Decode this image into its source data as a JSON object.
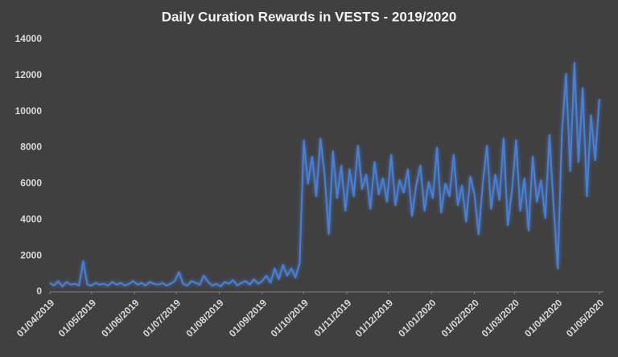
{
  "chart_data": {
    "type": "line",
    "title": "Daily Curation Rewards in VESTS - 2019/2020",
    "x": [
      "01/04/2019",
      "04/04/2019",
      "07/04/2019",
      "10/04/2019",
      "13/04/2019",
      "16/04/2019",
      "19/04/2019",
      "22/04/2019",
      "25/04/2019",
      "28/04/2019",
      "01/05/2019",
      "04/05/2019",
      "07/05/2019",
      "10/05/2019",
      "13/05/2019",
      "16/05/2019",
      "19/05/2019",
      "22/05/2019",
      "25/05/2019",
      "28/05/2019",
      "31/05/2019",
      "03/06/2019",
      "06/06/2019",
      "09/06/2019",
      "12/06/2019",
      "15/06/2019",
      "18/06/2019",
      "21/06/2019",
      "24/06/2019",
      "27/06/2019",
      "30/06/2019",
      "03/07/2019",
      "06/07/2019",
      "09/07/2019",
      "12/07/2019",
      "15/07/2019",
      "18/07/2019",
      "21/07/2019",
      "24/07/2019",
      "27/07/2019",
      "30/07/2019",
      "02/08/2019",
      "05/08/2019",
      "08/08/2019",
      "11/08/2019",
      "14/08/2019",
      "17/08/2019",
      "20/08/2019",
      "23/08/2019",
      "26/08/2019",
      "29/08/2019",
      "01/09/2019",
      "04/09/2019",
      "07/09/2019",
      "10/09/2019",
      "13/09/2019",
      "16/09/2019",
      "19/09/2019",
      "22/09/2019",
      "25/09/2019",
      "28/09/2019",
      "01/10/2019",
      "04/10/2019",
      "07/10/2019",
      "10/10/2019",
      "13/10/2019",
      "16/10/2019",
      "19/10/2019",
      "22/10/2019",
      "25/10/2019",
      "28/10/2019",
      "31/10/2019",
      "03/11/2019",
      "06/11/2019",
      "09/11/2019",
      "12/11/2019",
      "15/11/2019",
      "18/11/2019",
      "21/11/2019",
      "24/11/2019",
      "27/11/2019",
      "30/11/2019",
      "03/12/2019",
      "06/12/2019",
      "09/12/2019",
      "12/12/2019",
      "15/12/2019",
      "18/12/2019",
      "21/12/2019",
      "24/12/2019",
      "27/12/2019",
      "30/12/2019",
      "02/01/2020",
      "05/01/2020",
      "08/01/2020",
      "11/01/2020",
      "14/01/2020",
      "17/01/2020",
      "20/01/2020",
      "23/01/2020",
      "26/01/2020",
      "29/01/2020",
      "01/02/2020",
      "04/02/2020",
      "07/02/2020",
      "10/02/2020",
      "13/02/2020",
      "16/02/2020",
      "19/02/2020",
      "22/02/2020",
      "25/02/2020",
      "28/02/2020",
      "02/03/2020",
      "05/03/2020",
      "08/03/2020",
      "11/03/2020",
      "14/03/2020",
      "17/03/2020",
      "20/03/2020",
      "23/03/2020",
      "26/03/2020",
      "29/03/2020",
      "01/04/2020",
      "04/04/2020",
      "07/04/2020",
      "10/04/2020",
      "13/04/2020",
      "16/04/2020",
      "19/04/2020",
      "22/04/2020",
      "25/04/2020",
      "28/04/2020",
      "01/05/2020"
    ],
    "values": [
      500,
      350,
      600,
      300,
      550,
      400,
      450,
      350,
      1700,
      400,
      350,
      500,
      400,
      450,
      350,
      550,
      400,
      500,
      350,
      450,
      600,
      400,
      500,
      350,
      550,
      450,
      400,
      500,
      350,
      450,
      600,
      1100,
      450,
      350,
      600,
      500,
      400,
      900,
      550,
      350,
      450,
      300,
      550,
      450,
      650,
      350,
      500,
      600,
      400,
      700,
      450,
      600,
      900,
      500,
      1300,
      700,
      1500,
      900,
      1300,
      800,
      1600,
      8400,
      6000,
      7500,
      5300,
      8500,
      6500,
      3200,
      7800,
      5200,
      7000,
      4500,
      6800,
      5300,
      8100,
      5700,
      6500,
      4600,
      7200,
      5400,
      6300,
      5000,
      7600,
      4800,
      6200,
      5500,
      6800,
      4200,
      5900,
      7000,
      4500,
      6100,
      5200,
      8000,
      4400,
      6000,
      5300,
      7600,
      4800,
      5900,
      3900,
      6400,
      5400,
      3200,
      6000,
      8100,
      4600,
      6500,
      5100,
      8500,
      3700,
      5600,
      8400,
      4500,
      6300,
      3400,
      7500,
      5000,
      6200,
      4100,
      8700,
      4800,
      1300,
      8800,
      12100,
      6700,
      12700,
      7200,
      11300,
      5300,
      9800,
      7300,
      10700
    ],
    "color": "#4a7fd6",
    "xlim": [
      "01/04/2019",
      "04/05/2020"
    ],
    "xticks": [
      "01/04/2019",
      "01/05/2019",
      "01/06/2019",
      "01/07/2019",
      "01/08/2019",
      "01/09/2019",
      "01/10/2019",
      "01/11/2019",
      "01/12/2019",
      "01/01/2020",
      "01/02/2020",
      "01/03/2020",
      "01/04/2020",
      "01/05/2020"
    ],
    "ylim": [
      0,
      14000
    ],
    "yticks": [
      0,
      2000,
      4000,
      6000,
      8000,
      10000,
      12000,
      14000
    ],
    "grid": false
  }
}
